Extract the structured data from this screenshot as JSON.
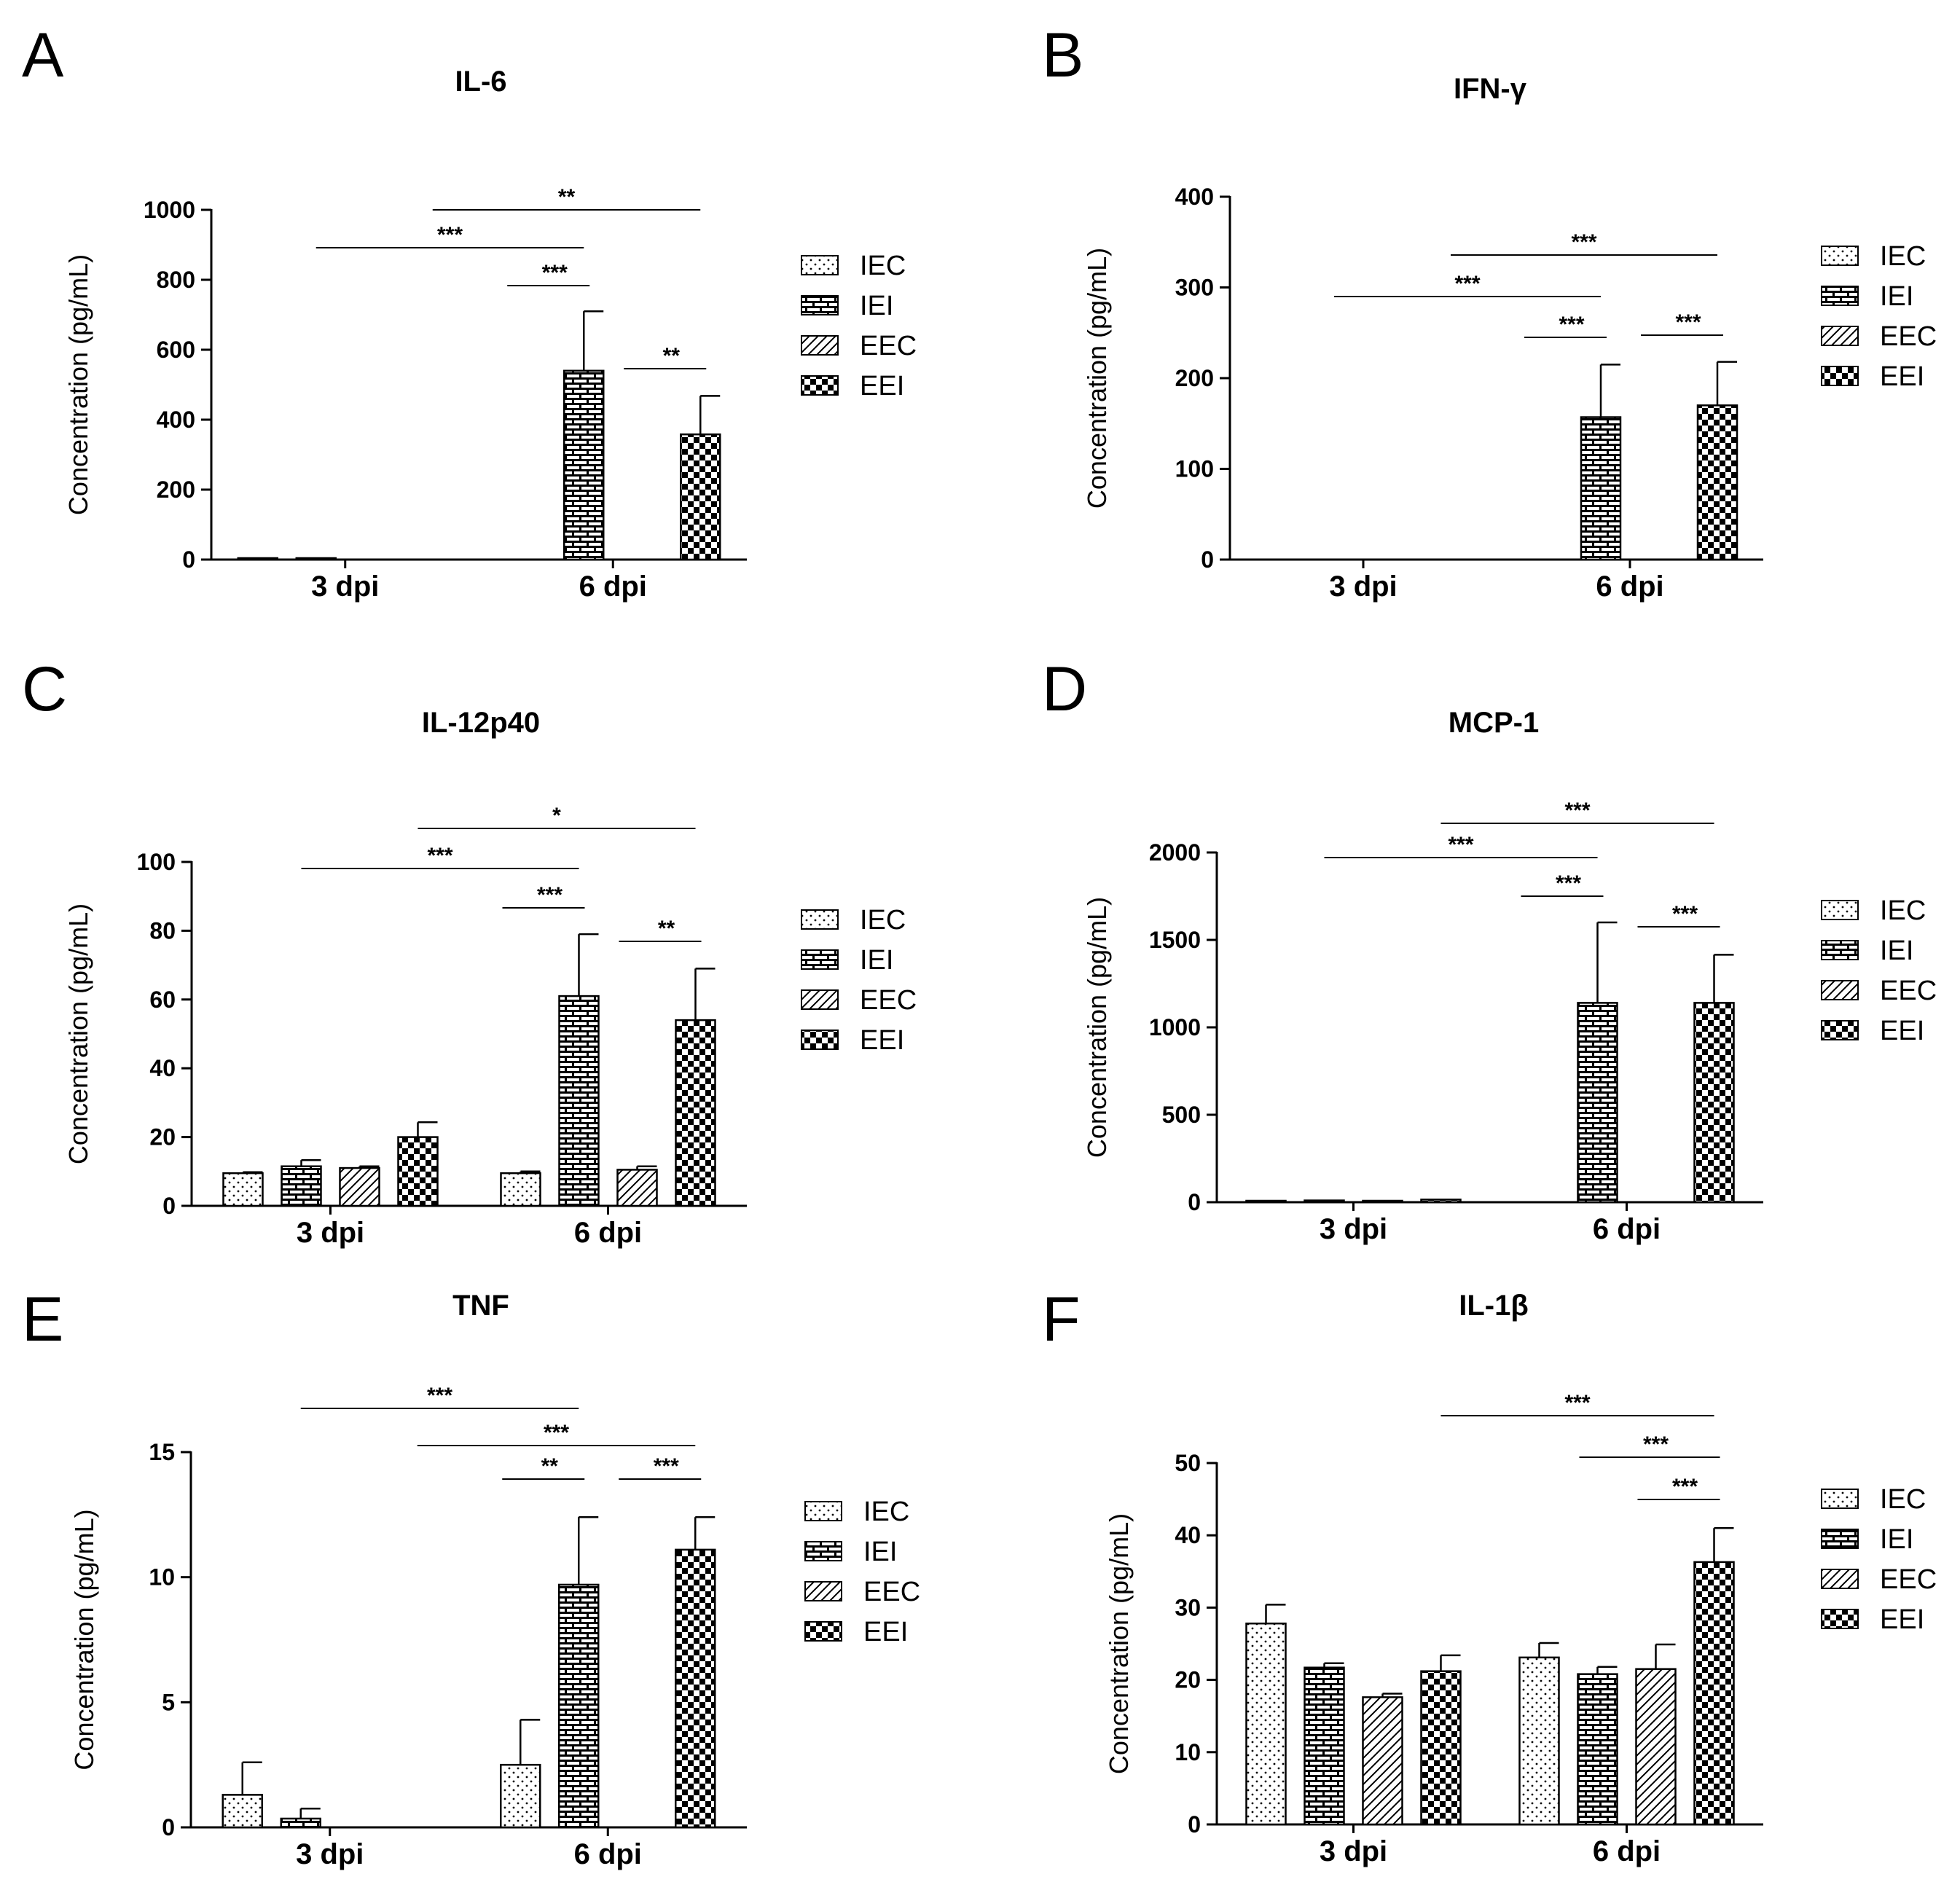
{
  "figure": {
    "background": "#ffffff",
    "ink_color": "#000000"
  },
  "legend_entries": [
    {
      "name": "IEC",
      "pattern": "dots"
    },
    {
      "name": "IEI",
      "pattern": "brick"
    },
    {
      "name": "EEC",
      "pattern": "diagonal"
    },
    {
      "name": "EEI",
      "pattern": "checker"
    }
  ],
  "chart_data": [
    {
      "panel": "A",
      "type": "bar",
      "title": "IL-6",
      "ylabel": "Concentration (pg/mL)",
      "xlabel": "",
      "ylim": [
        0,
        1000
      ],
      "yticks": [
        0,
        200,
        400,
        600,
        800,
        1000
      ],
      "categories": [
        "3 dpi",
        "6 dpi"
      ],
      "series": [
        {
          "name": "IEC",
          "values": [
            2,
            0
          ],
          "errors": [
            0,
            0
          ]
        },
        {
          "name": "IEI",
          "values": [
            2,
            540
          ],
          "errors": [
            0,
            170
          ]
        },
        {
          "name": "EEC",
          "values": [
            0,
            0
          ],
          "errors": [
            0,
            0
          ]
        },
        {
          "name": "EEI",
          "values": [
            0,
            358
          ],
          "errors": [
            0,
            110
          ]
        }
      ],
      "significance": [
        {
          "label": "**",
          "from": [
            0,
            3
          ],
          "to": [
            1,
            3
          ]
        },
        {
          "label": "***",
          "from": [
            0,
            1
          ],
          "to": [
            1,
            1
          ]
        },
        {
          "label": "***",
          "from": [
            1,
            0
          ],
          "to": [
            1,
            1
          ]
        },
        {
          "label": "**",
          "from": [
            1,
            2
          ],
          "to": [
            1,
            3
          ]
        }
      ]
    },
    {
      "panel": "B",
      "type": "bar",
      "title": "IFN-γ",
      "ylabel": "Concentration (pg/mL)",
      "xlabel": "",
      "ylim": [
        0,
        400
      ],
      "yticks": [
        0,
        100,
        200,
        300,
        400
      ],
      "categories": [
        "3 dpi",
        "6 dpi"
      ],
      "series": [
        {
          "name": "IEC",
          "values": [
            0,
            0
          ],
          "errors": [
            0,
            0
          ]
        },
        {
          "name": "IEI",
          "values": [
            0,
            157
          ],
          "errors": [
            0,
            58
          ]
        },
        {
          "name": "EEC",
          "values": [
            0,
            0
          ],
          "errors": [
            0,
            0
          ]
        },
        {
          "name": "EEI",
          "values": [
            0,
            170
          ],
          "errors": [
            0,
            48
          ]
        }
      ],
      "significance": [
        {
          "label": "***",
          "from": [
            0,
            3
          ],
          "to": [
            1,
            3
          ]
        },
        {
          "label": "***",
          "from": [
            0,
            1
          ],
          "to": [
            1,
            1
          ]
        },
        {
          "label": "***",
          "from": [
            1,
            0
          ],
          "to": [
            1,
            1
          ]
        },
        {
          "label": "***",
          "from": [
            1,
            2
          ],
          "to": [
            1,
            3
          ]
        }
      ]
    },
    {
      "panel": "C",
      "type": "bar",
      "title": "IL-12p40",
      "ylabel": "Concentration (pg/mL)",
      "xlabel": "",
      "ylim": [
        0,
        100
      ],
      "yticks": [
        0,
        20,
        40,
        60,
        80,
        100
      ],
      "categories": [
        "3 dpi",
        "6 dpi"
      ],
      "series": [
        {
          "name": "IEC",
          "values": [
            9.5,
            9.5
          ],
          "errors": [
            0.3,
            0.5
          ]
        },
        {
          "name": "IEI",
          "values": [
            11.5,
            61
          ],
          "errors": [
            1.8,
            18
          ]
        },
        {
          "name": "EEC",
          "values": [
            11,
            10.5
          ],
          "errors": [
            0.5,
            1.0
          ]
        },
        {
          "name": "EEI",
          "values": [
            20,
            54
          ],
          "errors": [
            4.3,
            15
          ]
        }
      ],
      "significance": [
        {
          "label": "*",
          "from": [
            0,
            3
          ],
          "to": [
            1,
            3
          ]
        },
        {
          "label": "***",
          "from": [
            0,
            1
          ],
          "to": [
            1,
            1
          ]
        },
        {
          "label": "***",
          "from": [
            1,
            0
          ],
          "to": [
            1,
            1
          ]
        },
        {
          "label": "**",
          "from": [
            1,
            2
          ],
          "to": [
            1,
            3
          ]
        }
      ]
    },
    {
      "panel": "D",
      "type": "bar",
      "title": "MCP-1",
      "ylabel": "Concentration (pg/mL)",
      "xlabel": "",
      "ylim": [
        0,
        2000
      ],
      "yticks": [
        0,
        500,
        1000,
        1500,
        2000
      ],
      "categories": [
        "3 dpi",
        "6 dpi"
      ],
      "series": [
        {
          "name": "IEC",
          "values": [
            5,
            0
          ],
          "errors": [
            0,
            0
          ]
        },
        {
          "name": "IEI",
          "values": [
            10,
            1140
          ],
          "errors": [
            0,
            460
          ]
        },
        {
          "name": "EEC",
          "values": [
            5,
            0
          ],
          "errors": [
            0,
            0
          ]
        },
        {
          "name": "EEI",
          "values": [
            15,
            1140
          ],
          "errors": [
            0,
            275
          ]
        }
      ],
      "significance": [
        {
          "label": "***",
          "from": [
            0,
            3
          ],
          "to": [
            1,
            3
          ]
        },
        {
          "label": "***",
          "from": [
            0,
            1
          ],
          "to": [
            1,
            1
          ]
        },
        {
          "label": "***",
          "from": [
            1,
            0
          ],
          "to": [
            1,
            1
          ]
        },
        {
          "label": "***",
          "from": [
            1,
            2
          ],
          "to": [
            1,
            3
          ]
        }
      ]
    },
    {
      "panel": "E",
      "type": "bar",
      "title": "TNF",
      "ylabel": "Concentration (pg/mL)",
      "xlabel": "",
      "ylim": [
        0,
        15
      ],
      "yticks": [
        0,
        5,
        10,
        15
      ],
      "categories": [
        "3 dpi",
        "6 dpi"
      ],
      "series": [
        {
          "name": "IEC",
          "values": [
            1.3,
            2.5
          ],
          "errors": [
            1.3,
            1.8
          ]
        },
        {
          "name": "IEI",
          "values": [
            0.35,
            9.7
          ],
          "errors": [
            0.4,
            2.7
          ]
        },
        {
          "name": "EEC",
          "values": [
            0,
            0
          ],
          "errors": [
            0,
            0
          ]
        },
        {
          "name": "EEI",
          "values": [
            0,
            11.1
          ],
          "errors": [
            0,
            1.3
          ]
        }
      ],
      "significance": [
        {
          "label": "***",
          "from": [
            0,
            1
          ],
          "to": [
            1,
            1
          ]
        },
        {
          "label": "***",
          "from": [
            0,
            3
          ],
          "to": [
            1,
            3
          ]
        },
        {
          "label": "**",
          "from": [
            1,
            0
          ],
          "to": [
            1,
            1
          ]
        },
        {
          "label": "***",
          "from": [
            1,
            2
          ],
          "to": [
            1,
            3
          ]
        }
      ]
    },
    {
      "panel": "F",
      "type": "bar",
      "title": "IL-1β",
      "ylabel": "Concentration (pg/mL)",
      "xlabel": "",
      "ylim": [
        0,
        50
      ],
      "yticks": [
        0,
        10,
        20,
        30,
        40,
        50
      ],
      "categories": [
        "3 dpi",
        "6 dpi"
      ],
      "series": [
        {
          "name": "IEC",
          "values": [
            27.8,
            23.1
          ],
          "errors": [
            2.6,
            2.0
          ]
        },
        {
          "name": "IEI",
          "values": [
            21.7,
            20.8
          ],
          "errors": [
            0.6,
            1.0
          ]
        },
        {
          "name": "EEC",
          "values": [
            17.6,
            21.5
          ],
          "errors": [
            0.5,
            3.4
          ]
        },
        {
          "name": "EEI",
          "values": [
            21.2,
            36.3
          ],
          "errors": [
            2.2,
            4.7
          ]
        }
      ],
      "significance": [
        {
          "label": "***",
          "from": [
            0,
            3
          ],
          "to": [
            1,
            3
          ]
        },
        {
          "label": "***",
          "from": [
            1,
            1
          ],
          "to": [
            1,
            3
          ]
        },
        {
          "label": "***",
          "from": [
            1,
            2
          ],
          "to": [
            1,
            3
          ]
        }
      ]
    }
  ]
}
